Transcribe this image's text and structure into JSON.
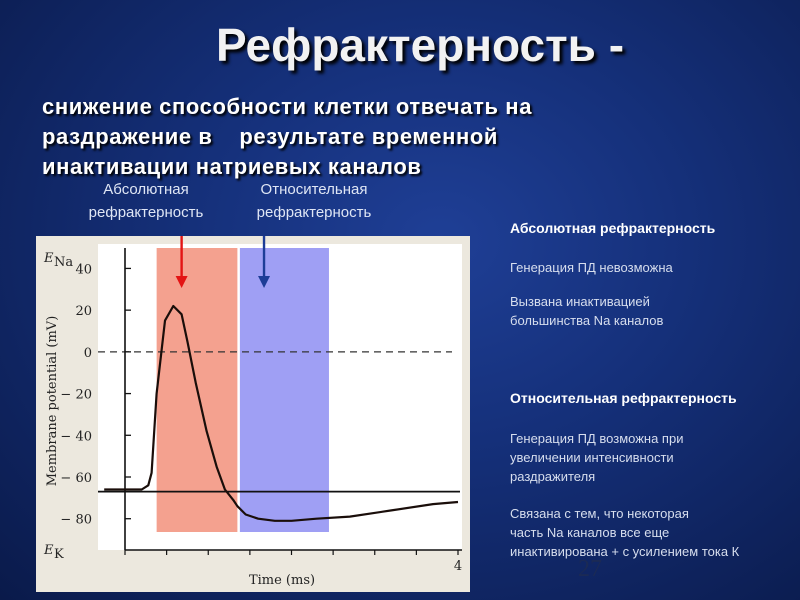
{
  "slide": {
    "title": "Рефрактерность -",
    "subtitle_lines": [
      "снижение способности клетки отвечать на",
      "раздражение в    результате временной",
      "инактивации натриевых каналов"
    ],
    "label_abs": [
      "Абсолютная",
      "рефрактерность"
    ],
    "label_rel": [
      "Относительная",
      "рефрактерность"
    ],
    "page_number": "27"
  },
  "right": {
    "abs_heading": "Абсолютная рефрактерность",
    "abs_text1": "Генерация ПД невозможна",
    "abs_text2_lines": [
      "Вызвана инактивацией",
      "большинства Na каналов"
    ],
    "rel_heading": "Относительная рефрактерность",
    "rel_text1_lines": [
      "Генерация ПД возможна при",
      "увеличении интенсивности",
      "раздражителя"
    ],
    "rel_text2_lines": [
      "Связана с тем, что некоторая",
      "часть Na каналов все еще",
      "инактивирована + с усилением тока К"
    ]
  },
  "chart_data": {
    "type": "line",
    "xlabel": "Time (ms)",
    "ylabel": "Membrane potential (mV)",
    "x_tick_labels": [
      "4"
    ],
    "y_ticks": [
      40,
      20,
      0,
      -20,
      -40,
      -60,
      -80
    ],
    "y_tick_labels": [
      "40",
      "20",
      "0",
      "− 20",
      "− 40",
      "− 60",
      "− 80"
    ],
    "ylim": [
      -95,
      45
    ],
    "xlim": [
      0,
      4
    ],
    "ena_label": "E",
    "ena_sub": "Na",
    "ek_label": "E",
    "ek_sub": "K",
    "resting_potential": -67,
    "zero_line": 0,
    "series": [
      {
        "x": [
          -0.25,
          0.0,
          0.2,
          0.28,
          0.32,
          0.38,
          0.48,
          0.58,
          0.68,
          0.75,
          0.85,
          0.98,
          1.1,
          1.2,
          1.3,
          1.35,
          1.45,
          1.6,
          1.8,
          2.0,
          2.3,
          2.7,
          3.2,
          3.7,
          4.0
        ],
        "y": [
          -66,
          -66,
          -66,
          -64,
          -58,
          -20,
          15,
          22,
          18,
          5,
          -15,
          -38,
          -55,
          -66,
          -71,
          -74,
          -78,
          -80,
          -81,
          -81,
          -80,
          -79,
          -76,
          -73,
          -72
        ]
      }
    ],
    "regions": [
      {
        "name": "absolute",
        "x0": 0.38,
        "x1": 1.35,
        "color": "#f4a18f"
      },
      {
        "name": "relative",
        "x0": 1.38,
        "x1": 2.45,
        "color": "#9f9ff4"
      }
    ],
    "arrows": [
      {
        "x": 0.68,
        "color": "#e31414"
      },
      {
        "x": 1.67,
        "color": "#1d3d97"
      }
    ]
  }
}
